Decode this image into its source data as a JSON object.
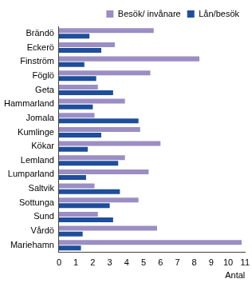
{
  "chart_data": {
    "type": "bar",
    "orientation": "horizontal",
    "categories": [
      "Brändö",
      "Eckerö",
      "Finström",
      "Föglö",
      "Geta",
      "Hammarland",
      "Jomala",
      "Kumlinge",
      "Kökar",
      "Lemland",
      "Lumparland",
      "Saltvik",
      "Sottunga",
      "Sund",
      "Vårdö",
      "Mariehamn"
    ],
    "series": [
      {
        "name": "Besök/ invånare",
        "color": "#9b8ec4",
        "values": [
          5.6,
          3.3,
          8.3,
          5.4,
          2.3,
          3.9,
          2.1,
          4.8,
          6.0,
          3.9,
          5.3,
          2.1,
          4.7,
          2.3,
          5.8,
          10.8
        ]
      },
      {
        "name": "Lån/besök",
        "color": "#1f4e9a",
        "values": [
          1.8,
          2.5,
          1.5,
          2.2,
          3.2,
          2.0,
          4.7,
          2.5,
          1.7,
          3.5,
          1.6,
          3.6,
          3.0,
          3.2,
          1.4,
          1.3
        ]
      }
    ],
    "x_label": "Antal",
    "xlim": [
      0,
      11
    ],
    "xticks": [
      0,
      1,
      2,
      3,
      4,
      5,
      6,
      7,
      8,
      9,
      10,
      11
    ],
    "grid": false,
    "legend": "upper right"
  }
}
